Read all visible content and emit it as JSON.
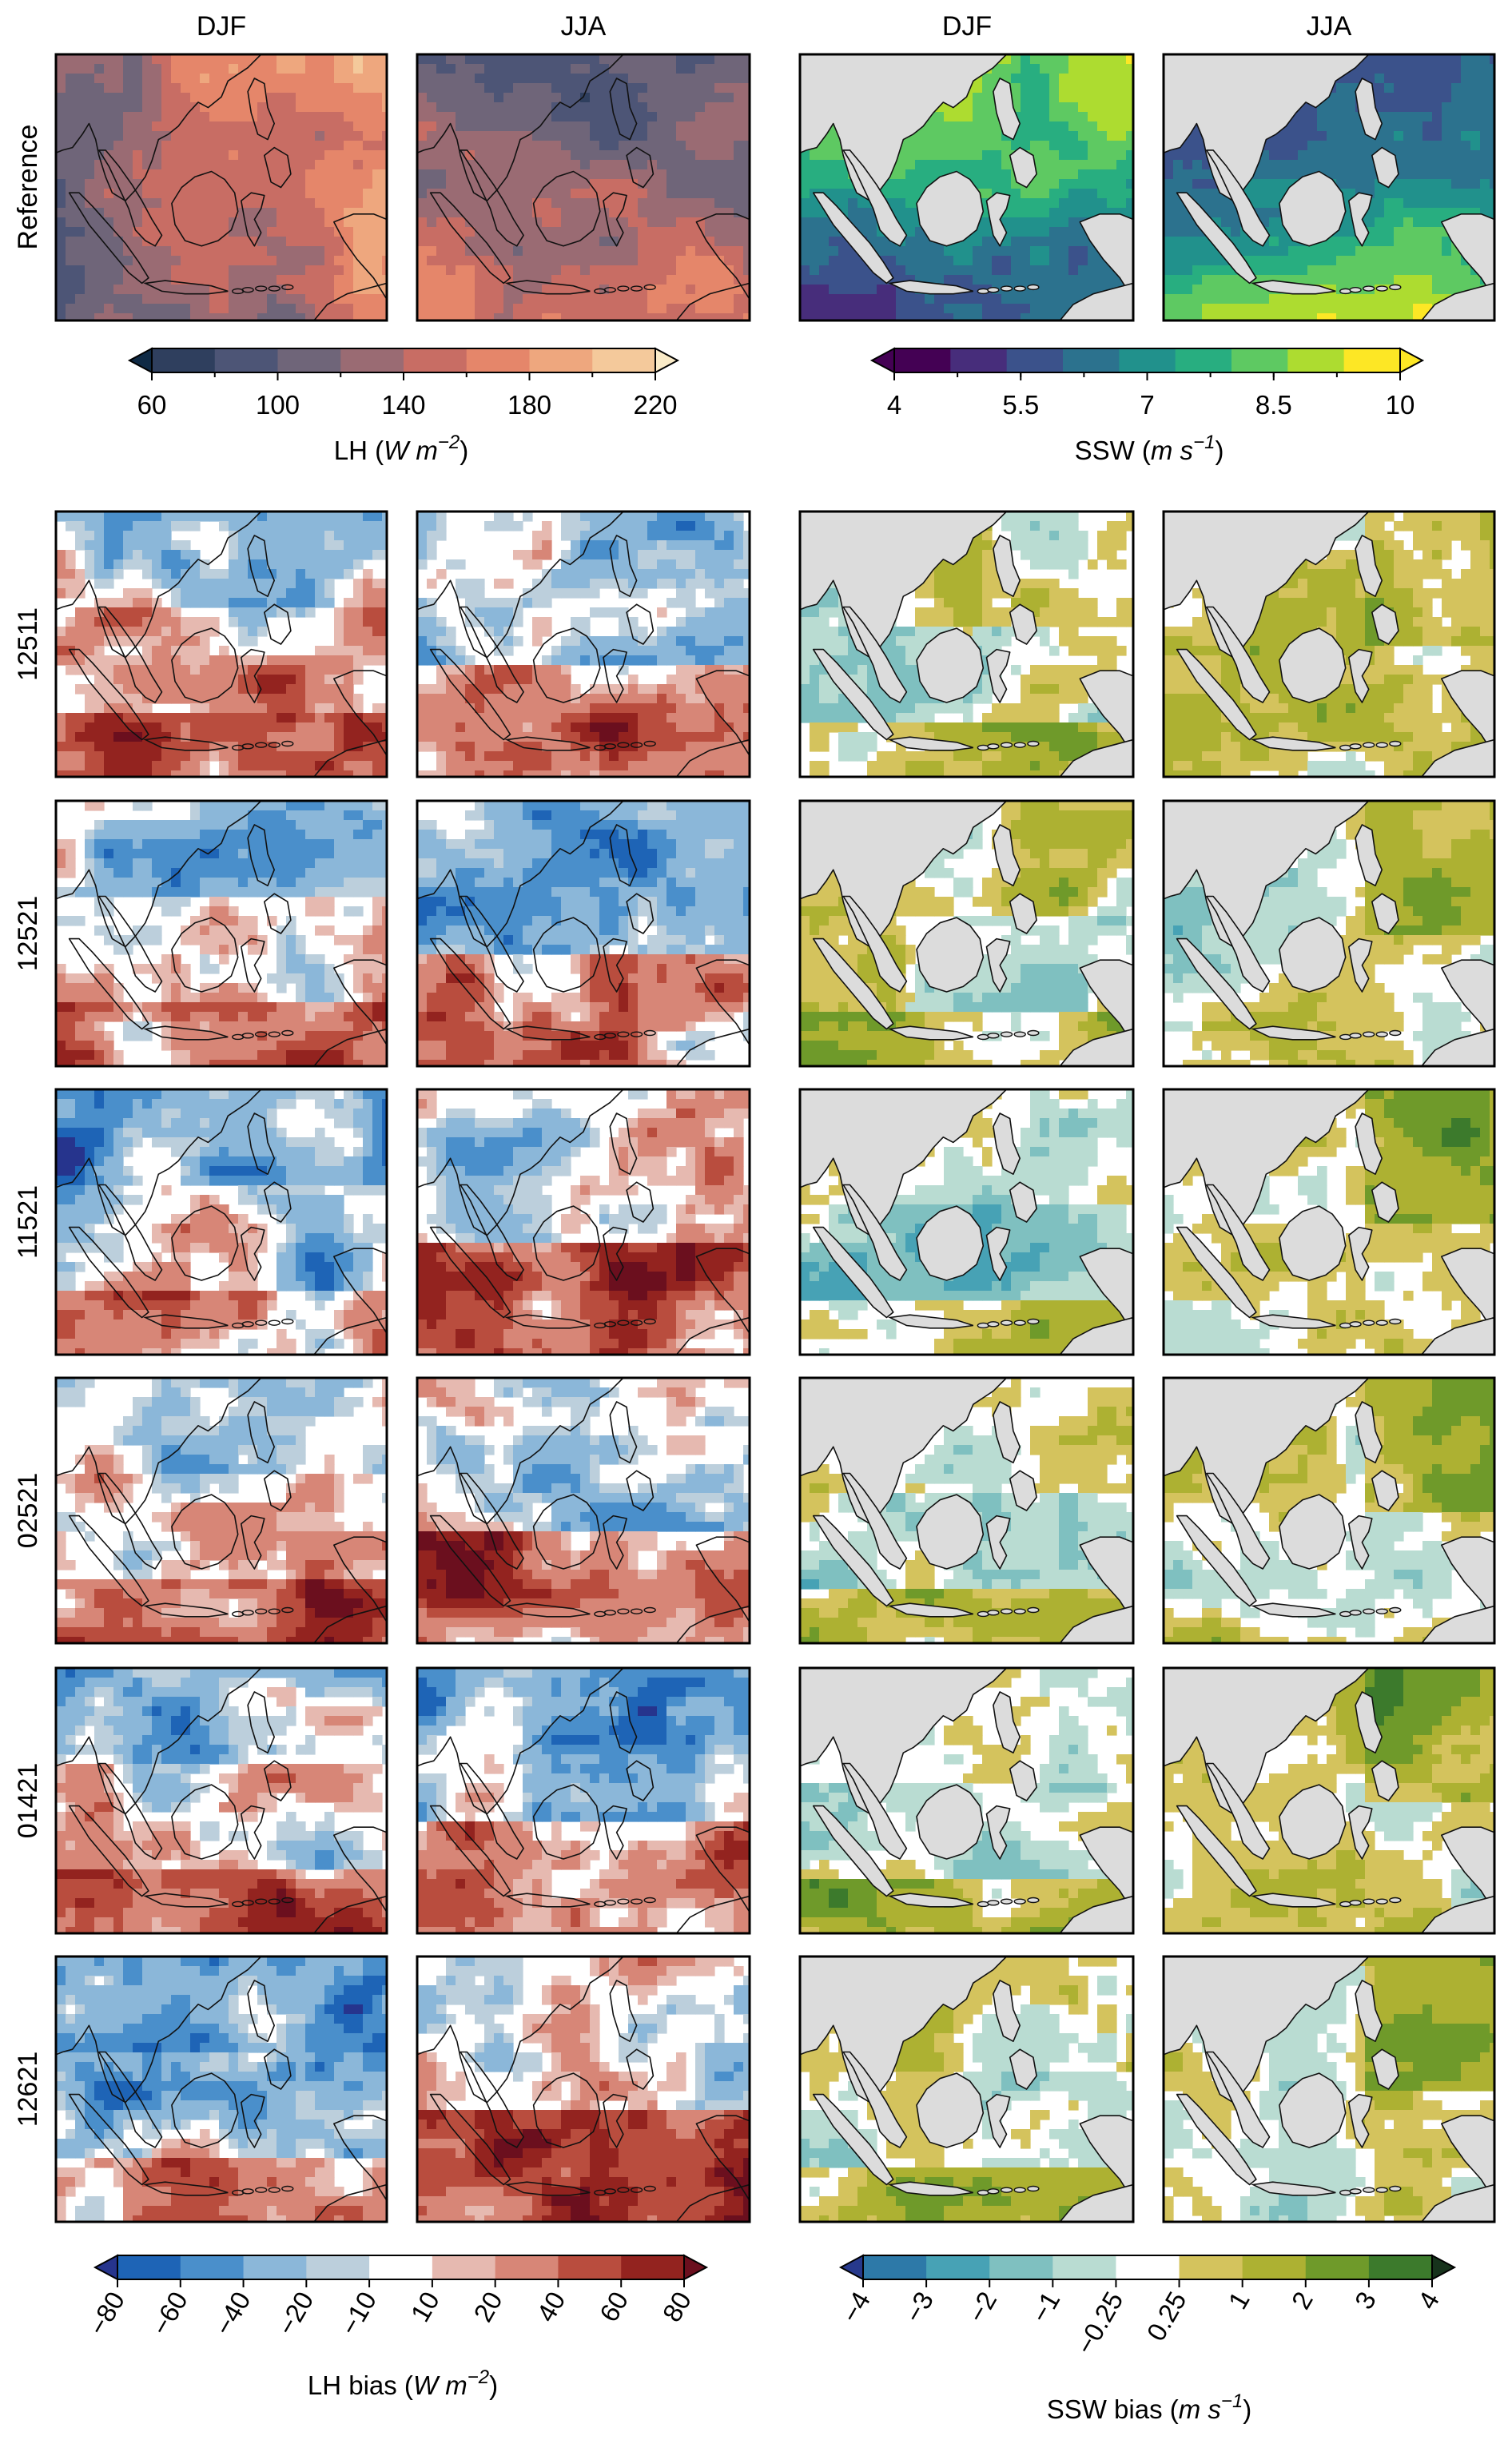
{
  "chart_data": {
    "type": "heatmap",
    "column_titles": [
      "DJF",
      "JJA",
      "DJF",
      "JJA"
    ],
    "row_labels": [
      "Reference",
      "12511",
      "12521",
      "11521",
      "02521",
      "01421",
      "12621"
    ],
    "colorbars": [
      {
        "id": "lh",
        "label_prefix": "LH (",
        "label_unit": "W m",
        "label_exp": "−2",
        "label_suffix": ")",
        "ticks": [
          "60",
          "100",
          "140",
          "180",
          "220"
        ],
        "range": [
          60,
          220
        ],
        "levels": [
          60,
          80,
          100,
          120,
          140,
          160,
          180,
          200,
          220
        ],
        "colors": [
          "#0f2a45",
          "#2f3f5e",
          "#4d5576",
          "#6f6579",
          "#9a6b73",
          "#c86d64",
          "#e5866a",
          "#eea77e",
          "#f4c99b",
          "#faebc8"
        ]
      },
      {
        "id": "ssw",
        "label_prefix": "SSW (",
        "label_unit": "m s",
        "label_exp": "−1",
        "label_suffix": ")",
        "ticks": [
          "4",
          "5.5",
          "7",
          "8.5",
          "10"
        ],
        "range": [
          4,
          10
        ],
        "levels": [
          4,
          4.75,
          5.5,
          6.25,
          7,
          7.75,
          8.5,
          9.25,
          10
        ],
        "colors": [
          "#440154",
          "#472d7b",
          "#3b528b",
          "#2c728e",
          "#21918c",
          "#28ae80",
          "#5ec962",
          "#addc30",
          "#fde725"
        ]
      },
      {
        "id": "lhbias",
        "label_prefix": "LH bias (",
        "label_unit": "W m",
        "label_exp": "−2",
        "label_suffix": ")",
        "ticks": [
          "−80",
          "−60",
          "−40",
          "−20",
          "−10",
          "10",
          "20",
          "40",
          "60",
          "80"
        ],
        "levels": [
          -80,
          -60,
          -40,
          -20,
          -10,
          10,
          20,
          40,
          60,
          80
        ],
        "colors": [
          "#26348d",
          "#1e64b6",
          "#4a8fcb",
          "#8bb7d9",
          "#bccfdc",
          "#ffffff",
          "#e6b9b0",
          "#d78677",
          "#b94d3e",
          "#93231f",
          "#6b0f1e"
        ]
      },
      {
        "id": "sswbias",
        "label_prefix": "SSW bias (",
        "label_unit": "m s",
        "label_exp": "−1",
        "label_suffix": ")",
        "ticks": [
          "−4",
          "−3",
          "−2",
          "−1",
          "−0.25",
          "0.25",
          "1",
          "2",
          "3",
          "4"
        ],
        "levels": [
          -4,
          -3,
          -2,
          -1,
          -0.25,
          0.25,
          1,
          2,
          3,
          4
        ],
        "colors": [
          "#27398c",
          "#2d79a8",
          "#47a2b5",
          "#7fc0c0",
          "#b9dcd2",
          "#ffffff",
          "#d4c35d",
          "#adb132",
          "#6f9a2a",
          "#3c7a2c",
          "#17331c"
        ]
      }
    ],
    "land_color": "#dcdcdc",
    "grid": false
  }
}
